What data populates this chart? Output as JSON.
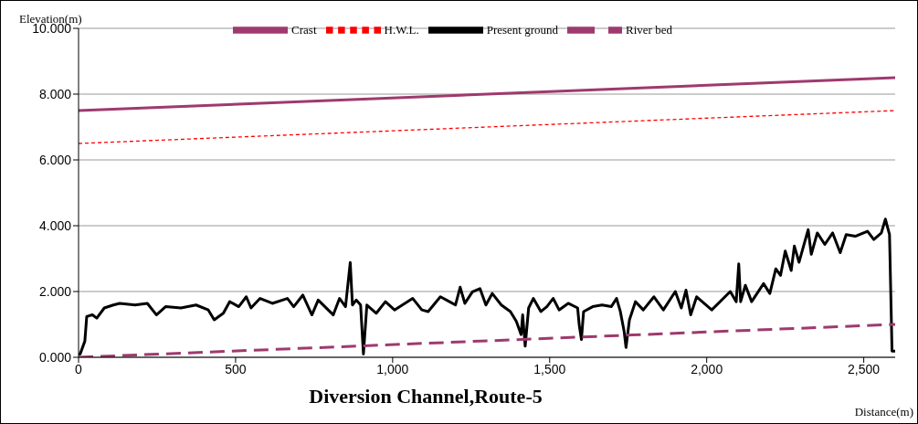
{
  "chart_data": {
    "type": "line",
    "title": "Diversion Channel,Route-5",
    "xlabel": "Distance(m)",
    "ylabel": "Elevation(m)",
    "xlim": [
      0,
      2600
    ],
    "xticks": [
      0,
      500,
      {
        "value": 1000,
        "label": "1,000"
      },
      {
        "value": 1500,
        "label": "1,500"
      },
      {
        "value": 2000,
        "label": "2,000"
      },
      {
        "value": 2500,
        "label": "2,500"
      }
    ],
    "ylim": [
      0,
      10
    ],
    "yticks": [
      {
        "value": 0,
        "label": "0.000"
      },
      {
        "value": 2,
        "label": "2.000"
      },
      {
        "value": 4,
        "label": "4.000"
      },
      {
        "value": 6,
        "label": "6.000"
      },
      {
        "value": 8,
        "label": "8.000"
      },
      {
        "value": 10,
        "label": "10.000"
      }
    ],
    "grid": "y",
    "legend": "top",
    "series": [
      {
        "name": "Present ground",
        "color": "#000000",
        "line_style": "solid",
        "x": [
          0,
          5,
          20,
          26,
          44,
          58,
          82,
          111,
          131,
          180,
          219,
          248,
          277,
          326,
          374,
          413,
          432,
          461,
          481,
          510,
          534,
          549,
          578,
          617,
          665,
          685,
          714,
          743,
          763,
          811,
          831,
          850,
          865,
          872,
          884,
          898,
          907,
          918,
          948,
          977,
          1006,
          1064,
          1093,
          1113,
          1152,
          1181,
          1200,
          1215,
          1230,
          1254,
          1278,
          1297,
          1317,
          1346,
          1375,
          1394,
          1409,
          1414,
          1422,
          1433,
          1448,
          1472,
          1491,
          1511,
          1530,
          1559,
          1589,
          1594,
          1601,
          1608,
          1637,
          1667,
          1696,
          1713,
          1725,
          1737,
          1743,
          1754,
          1773,
          1798,
          1832,
          1862,
          1900,
          1919,
          1934,
          1949,
          1968,
          2016,
          2075,
          2094,
          2102,
          2108,
          2123,
          2143,
          2181,
          2201,
          2220,
          2235,
          2250,
          2269,
          2279,
          2294,
          2323,
          2333,
          2352,
          2376,
          2401,
          2425,
          2444,
          2473,
          2512,
          2532,
          2556,
          2569,
          2582,
          2590,
          2600
        ],
        "values": [
          0.1,
          0.1,
          0.49,
          1.24,
          1.29,
          1.19,
          1.5,
          1.59,
          1.64,
          1.59,
          1.64,
          1.29,
          1.54,
          1.5,
          1.59,
          1.44,
          1.14,
          1.34,
          1.69,
          1.54,
          1.84,
          1.5,
          1.79,
          1.64,
          1.79,
          1.54,
          1.89,
          1.29,
          1.74,
          1.29,
          1.79,
          1.54,
          2.88,
          1.59,
          1.74,
          1.59,
          0.1,
          1.59,
          1.34,
          1.69,
          1.44,
          1.79,
          1.44,
          1.39,
          1.84,
          1.69,
          1.59,
          2.13,
          1.64,
          1.99,
          2.09,
          1.59,
          1.94,
          1.59,
          1.39,
          1.09,
          0.69,
          1.29,
          0.34,
          1.5,
          1.79,
          1.39,
          1.54,
          1.79,
          1.44,
          1.64,
          1.5,
          0.99,
          0.54,
          1.39,
          1.54,
          1.59,
          1.54,
          1.79,
          1.39,
          0.79,
          0.3,
          1.14,
          1.69,
          1.44,
          1.84,
          1.44,
          2.0,
          1.5,
          2.04,
          1.29,
          1.84,
          1.44,
          2.0,
          1.69,
          2.84,
          1.69,
          2.19,
          1.69,
          2.24,
          1.94,
          2.69,
          2.49,
          3.23,
          2.64,
          3.38,
          2.89,
          3.88,
          3.13,
          3.78,
          3.43,
          3.78,
          3.18,
          3.73,
          3.68,
          3.83,
          3.58,
          3.78,
          4.2,
          3.73,
          0.19,
          0.19
        ]
      },
      {
        "name": "River bed",
        "color": "#9e3a6e",
        "line_style": "dashed",
        "x": [
          0,
          2600
        ],
        "values": [
          0,
          1.0
        ]
      },
      {
        "name": "Crast",
        "color": "#9e3a6e",
        "line_style": "solid",
        "x": [
          0,
          2600
        ],
        "values": [
          7.5,
          8.5
        ]
      },
      {
        "name": "H.W.L.",
        "color": "#ff0000",
        "line_style": "dotted",
        "x": [
          0,
          2600
        ],
        "values": [
          6.5,
          7.5
        ]
      }
    ]
  }
}
